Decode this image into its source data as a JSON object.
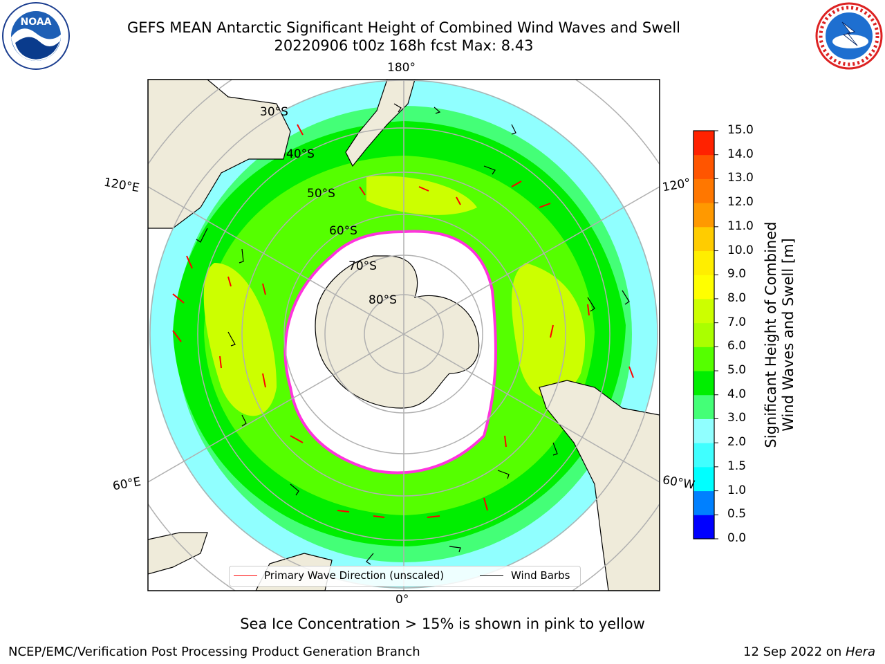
{
  "title": {
    "line1": "GEFS MEAN Antarctic Significant Height of Combined Wind Waves and Swell",
    "line2": "20220906 t00z 168h fcst   Max: 8.43"
  },
  "logos": {
    "noaa": {
      "text": "NOAA",
      "icon": "noaa-logo-icon"
    },
    "nws": {
      "icon": "nws-logo-icon"
    }
  },
  "map": {
    "longitude_labels": {
      "top": "180°",
      "left_upper": "120°E",
      "right_upper": "120°",
      "left_lower": "60°E",
      "right_lower": "60°W",
      "bottom": "0°"
    },
    "latitude_labels": [
      "30°S",
      "40°S",
      "50°S",
      "60°S",
      "70°S",
      "80°S"
    ],
    "colors": {
      "land": "#efebda",
      "ice_edge": "#ff33dd",
      "graticule": "#b0b0b0",
      "wave_arrow": "#ff0000",
      "wind_barb": "#000000"
    }
  },
  "legend": {
    "wave": "Primary Wave Direction (unscaled)",
    "wind": "Wind Barbs"
  },
  "colorbar": {
    "ticks": [
      "0.0",
      "0.5",
      "1.0",
      "1.5",
      "2.0",
      "3.0",
      "4.0",
      "5.0",
      "6.0",
      "7.0",
      "8.0",
      "9.0",
      "10.0",
      "11.0",
      "12.0",
      "13.0",
      "14.0",
      "15.0"
    ],
    "colors": [
      "#0000ff",
      "#0080ff",
      "#00ffff",
      "#40ffff",
      "#90ffff",
      "#44ff77",
      "#00ee00",
      "#55ff00",
      "#aaff00",
      "#ccff00",
      "#ffff00",
      "#ffee00",
      "#ffcc00",
      "#ff9900",
      "#ff7700",
      "#ff5500",
      "#ff2200"
    ],
    "label_line1": "Significant Height of Combined",
    "label_line2": "Wind Waves and Swell [m]"
  },
  "note": "Sea Ice Concentration > 15% is shown in pink to yellow",
  "footer": {
    "left": "NCEP/EMC/Verification Post Processing Product Generation Branch",
    "right_date": "12 Sep 2022 on ",
    "right_host": "Hera"
  }
}
